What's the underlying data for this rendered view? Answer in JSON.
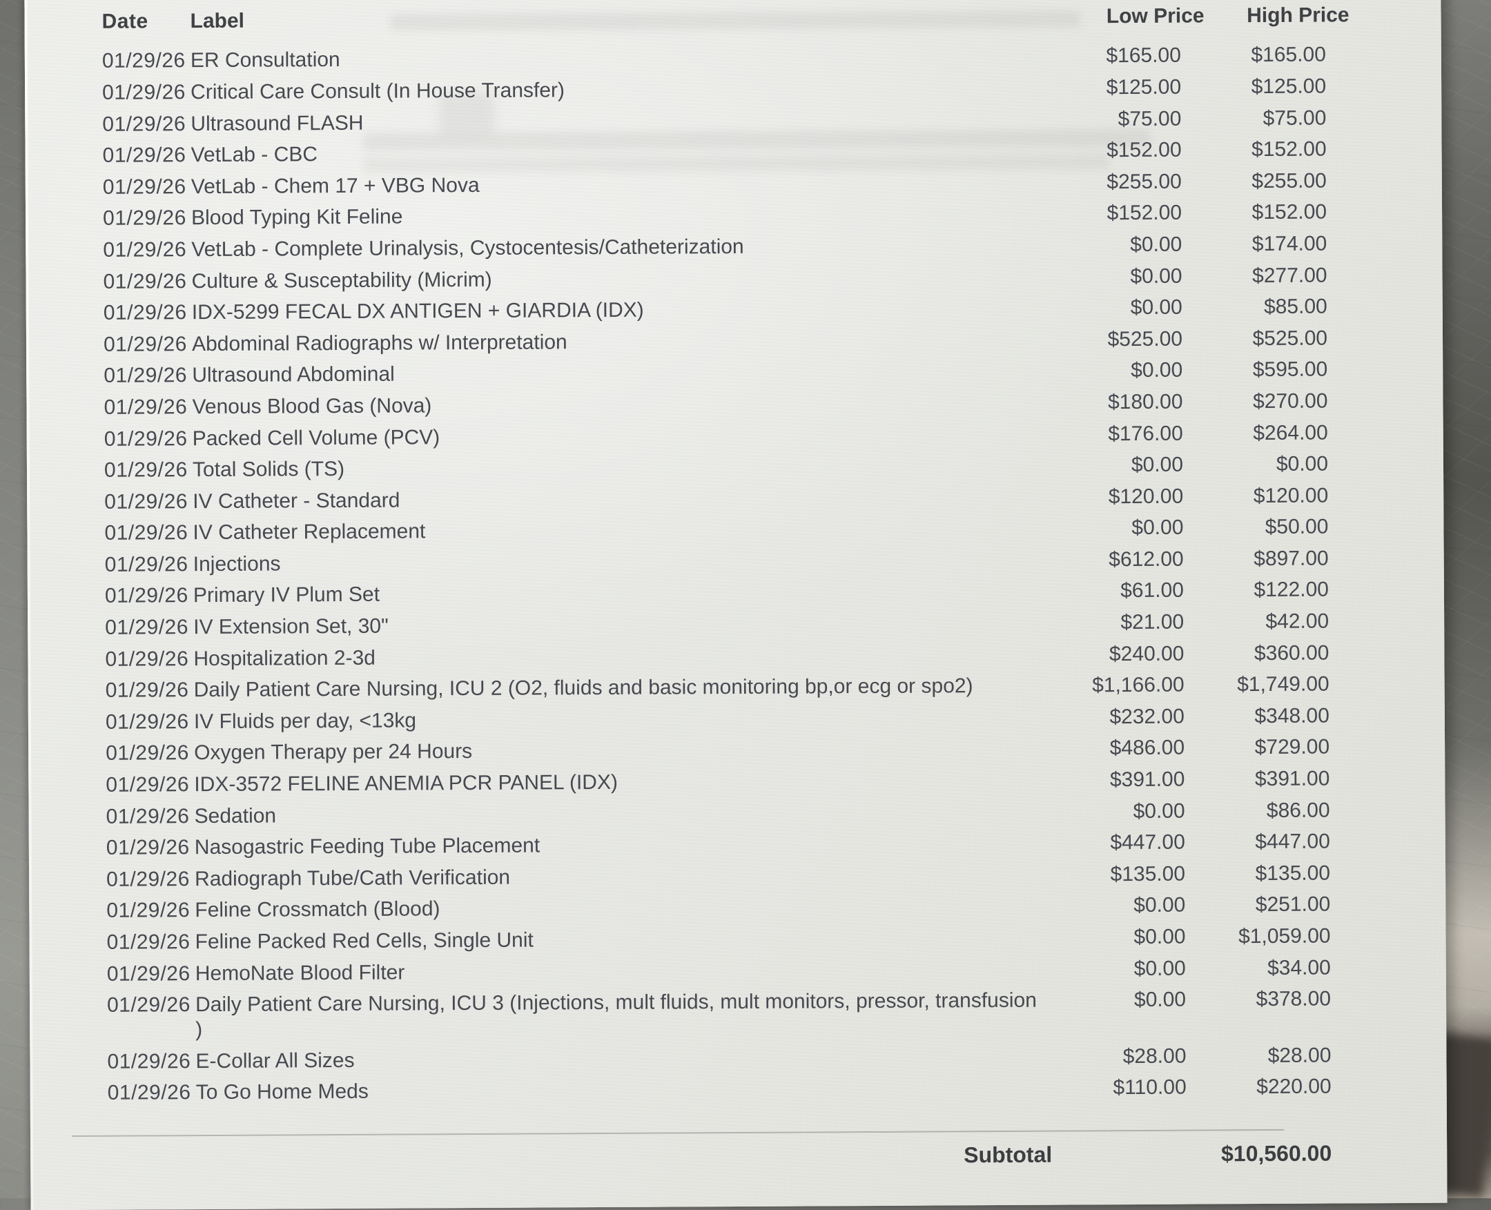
{
  "table": {
    "headers": {
      "date": "Date",
      "label": "Label",
      "low": "Low Price",
      "high": "High Price"
    },
    "rows": [
      {
        "date": "01/29/26",
        "label": "ER Consultation",
        "low": "$165.00",
        "high": "$165.00"
      },
      {
        "date": "01/29/26",
        "label": "Critical Care Consult (In House Transfer)",
        "low": "$125.00",
        "high": "$125.00"
      },
      {
        "date": "01/29/26",
        "label": "Ultrasound FLASH",
        "low": "$75.00",
        "high": "$75.00"
      },
      {
        "date": "01/29/26",
        "label": "VetLab - CBC",
        "low": "$152.00",
        "high": "$152.00"
      },
      {
        "date": "01/29/26",
        "label": "VetLab - Chem 17 + VBG Nova",
        "low": "$255.00",
        "high": "$255.00"
      },
      {
        "date": "01/29/26",
        "label": "Blood Typing Kit Feline",
        "low": "$152.00",
        "high": "$152.00"
      },
      {
        "date": "01/29/26",
        "label": "VetLab - Complete Urinalysis, Cystocentesis/Catheterization",
        "low": "$0.00",
        "high": "$174.00"
      },
      {
        "date": "01/29/26",
        "label": "Culture & Susceptability (Micrim)",
        "low": "$0.00",
        "high": "$277.00"
      },
      {
        "date": "01/29/26",
        "label": "IDX-5299 FECAL DX ANTIGEN + GIARDIA (IDX)",
        "low": "$0.00",
        "high": "$85.00"
      },
      {
        "date": "01/29/26",
        "label": "Abdominal Radiographs w/ Interpretation",
        "low": "$525.00",
        "high": "$525.00"
      },
      {
        "date": "01/29/26",
        "label": "Ultrasound Abdominal",
        "low": "$0.00",
        "high": "$595.00"
      },
      {
        "date": "01/29/26",
        "label": "Venous Blood Gas (Nova)",
        "low": "$180.00",
        "high": "$270.00"
      },
      {
        "date": "01/29/26",
        "label": "Packed Cell Volume (PCV)",
        "low": "$176.00",
        "high": "$264.00"
      },
      {
        "date": "01/29/26",
        "label": "Total Solids (TS)",
        "low": "$0.00",
        "high": "$0.00"
      },
      {
        "date": "01/29/26",
        "label": "IV Catheter - Standard",
        "low": "$120.00",
        "high": "$120.00"
      },
      {
        "date": "01/29/26",
        "label": "IV Catheter Replacement",
        "low": "$0.00",
        "high": "$50.00"
      },
      {
        "date": "01/29/26",
        "label": "Injections",
        "low": "$612.00",
        "high": "$897.00"
      },
      {
        "date": "01/29/26",
        "label": "Primary IV Plum Set",
        "low": "$61.00",
        "high": "$122.00"
      },
      {
        "date": "01/29/26",
        "label": "IV Extension Set, 30\"",
        "low": "$21.00",
        "high": "$42.00"
      },
      {
        "date": "01/29/26",
        "label": "Hospitalization 2-3d",
        "low": "$240.00",
        "high": "$360.00"
      },
      {
        "date": "01/29/26",
        "label": "Daily Patient Care Nursing, ICU 2 (O2, fluids and basic monitoring bp,or ecg or spo2)",
        "low": "$1,166.00",
        "high": "$1,749.00"
      },
      {
        "date": "01/29/26",
        "label": "IV Fluids per day, <13kg",
        "low": "$232.00",
        "high": "$348.00"
      },
      {
        "date": "01/29/26",
        "label": "Oxygen Therapy per 24 Hours",
        "low": "$486.00",
        "high": "$729.00"
      },
      {
        "date": "01/29/26",
        "label": "IDX-3572 FELINE ANEMIA PCR PANEL (IDX)",
        "low": "$391.00",
        "high": "$391.00"
      },
      {
        "date": "01/29/26",
        "label": "Sedation",
        "low": "$0.00",
        "high": "$86.00"
      },
      {
        "date": "01/29/26",
        "label": "Nasogastric Feeding Tube Placement",
        "low": "$447.00",
        "high": "$447.00"
      },
      {
        "date": "01/29/26",
        "label": "Radiograph Tube/Cath Verification",
        "low": "$135.00",
        "high": "$135.00"
      },
      {
        "date": "01/29/26",
        "label": "Feline Crossmatch (Blood)",
        "low": "$0.00",
        "high": "$251.00"
      },
      {
        "date": "01/29/26",
        "label": "Feline Packed Red Cells, Single Unit",
        "low": "$0.00",
        "high": "$1,059.00"
      },
      {
        "date": "01/29/26",
        "label": "HemoNate Blood Filter",
        "low": "$0.00",
        "high": "$34.00"
      },
      {
        "date": "01/29/26",
        "label": "Daily Patient Care Nursing, ICU 3 (Injections, mult fluids, mult monitors, pressor, transfusion\n)",
        "low": "$0.00",
        "high": "$378.00"
      },
      {
        "date": "01/29/26",
        "label": "E-Collar All Sizes",
        "low": "$28.00",
        "high": "$28.00"
      },
      {
        "date": "01/29/26",
        "label": "To Go Home Meds",
        "low": "$110.00",
        "high": "$220.00"
      }
    ]
  },
  "summary": {
    "subtotal_label": "Subtotal",
    "subtotal_value": "$10,560.00"
  },
  "colors": {
    "paper": "#e8e9e5",
    "ink": "#474950",
    "metal": "#7b7c78",
    "shadow": "#46413b"
  }
}
